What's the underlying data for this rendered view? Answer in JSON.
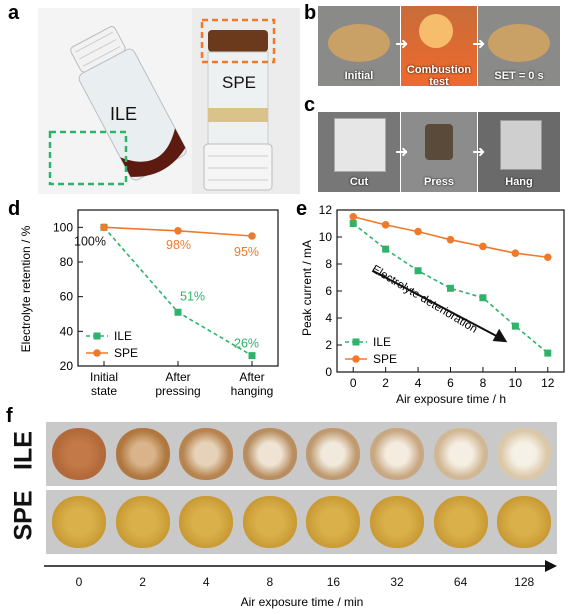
{
  "panels": {
    "a": "a",
    "b": "b",
    "c": "c",
    "d": "d",
    "e": "e",
    "f": "f"
  },
  "panel_a": {
    "label_ile": "ILE",
    "label_spe": "SPE"
  },
  "panel_b": {
    "steps": [
      "Initial",
      "Combustion test",
      "SET = 0 s"
    ]
  },
  "panel_c": {
    "steps": [
      "Cut",
      "Press",
      "Hang"
    ]
  },
  "panel_f": {
    "row_labels": [
      "ILE",
      "SPE"
    ],
    "ticks": [
      "0",
      "2",
      "4",
      "8",
      "16",
      "32",
      "64",
      "128"
    ],
    "xlabel": "Air exposure time / min"
  },
  "colors": {
    "ile": "#2fb36b",
    "spe": "#f07a2a",
    "ile_box": "#2db36b",
    "spe_box": "#f07a2a"
  },
  "chart_data": [
    {
      "panel": "d",
      "type": "line",
      "categories": [
        "Initial state",
        "After pressing",
        "After hanging"
      ],
      "series": [
        {
          "name": "ILE",
          "values": [
            100,
            51,
            26
          ],
          "labels": [
            "100%",
            "51%",
            "26%"
          ]
        },
        {
          "name": "SPE",
          "values": [
            100,
            98,
            95
          ],
          "labels": [
            "",
            "98%",
            "95%"
          ]
        }
      ],
      "ylabel": "Electrolyte retention / %",
      "ylim": [
        20,
        110
      ],
      "yticks": [
        20,
        40,
        60,
        80,
        100
      ],
      "legend": "bottom-left"
    },
    {
      "panel": "e",
      "type": "line",
      "x": [
        0,
        2,
        4,
        6,
        8,
        10,
        12
      ],
      "series": [
        {
          "name": "ILE",
          "values": [
            11.0,
            9.1,
            7.5,
            6.2,
            5.5,
            3.4,
            1.4
          ]
        },
        {
          "name": "SPE",
          "values": [
            11.5,
            10.9,
            10.4,
            9.8,
            9.3,
            8.8,
            8.5
          ]
        }
      ],
      "xlabel": "Air exposure time / h",
      "ylabel": "Peak current / mA",
      "xlim": [
        -1,
        13
      ],
      "ylim": [
        0,
        12
      ],
      "xticks": [
        0,
        2,
        4,
        6,
        8,
        10,
        12
      ],
      "yticks": [
        0,
        2,
        4,
        6,
        8,
        10,
        12
      ],
      "annotation": "Electrolyte deterioration",
      "legend": "bottom-left"
    }
  ]
}
